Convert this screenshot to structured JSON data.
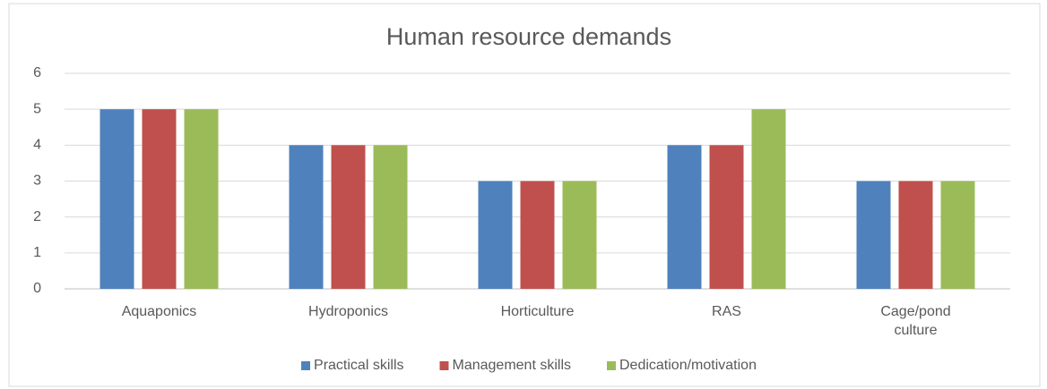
{
  "chart_data": {
    "type": "bar",
    "title": "Human resource demands",
    "categories": [
      "Aquaponics",
      "Hydroponics",
      "Horticulture",
      "RAS",
      "Cage/pond culture"
    ],
    "series": [
      {
        "name": "Practical skills",
        "color": "#4f81bd",
        "values": [
          5,
          4,
          3,
          4,
          3
        ]
      },
      {
        "name": "Management skills",
        "color": "#c0504d",
        "values": [
          5,
          4,
          3,
          4,
          3
        ]
      },
      {
        "name": "Dedication/motivation",
        "color": "#9bbb59",
        "values": [
          5,
          4,
          3,
          5,
          3
        ]
      }
    ],
    "ylim": [
      0,
      6
    ],
    "yticks": [
      0,
      1,
      2,
      3,
      4,
      5,
      6
    ],
    "grid": true,
    "legend": "bottom"
  }
}
